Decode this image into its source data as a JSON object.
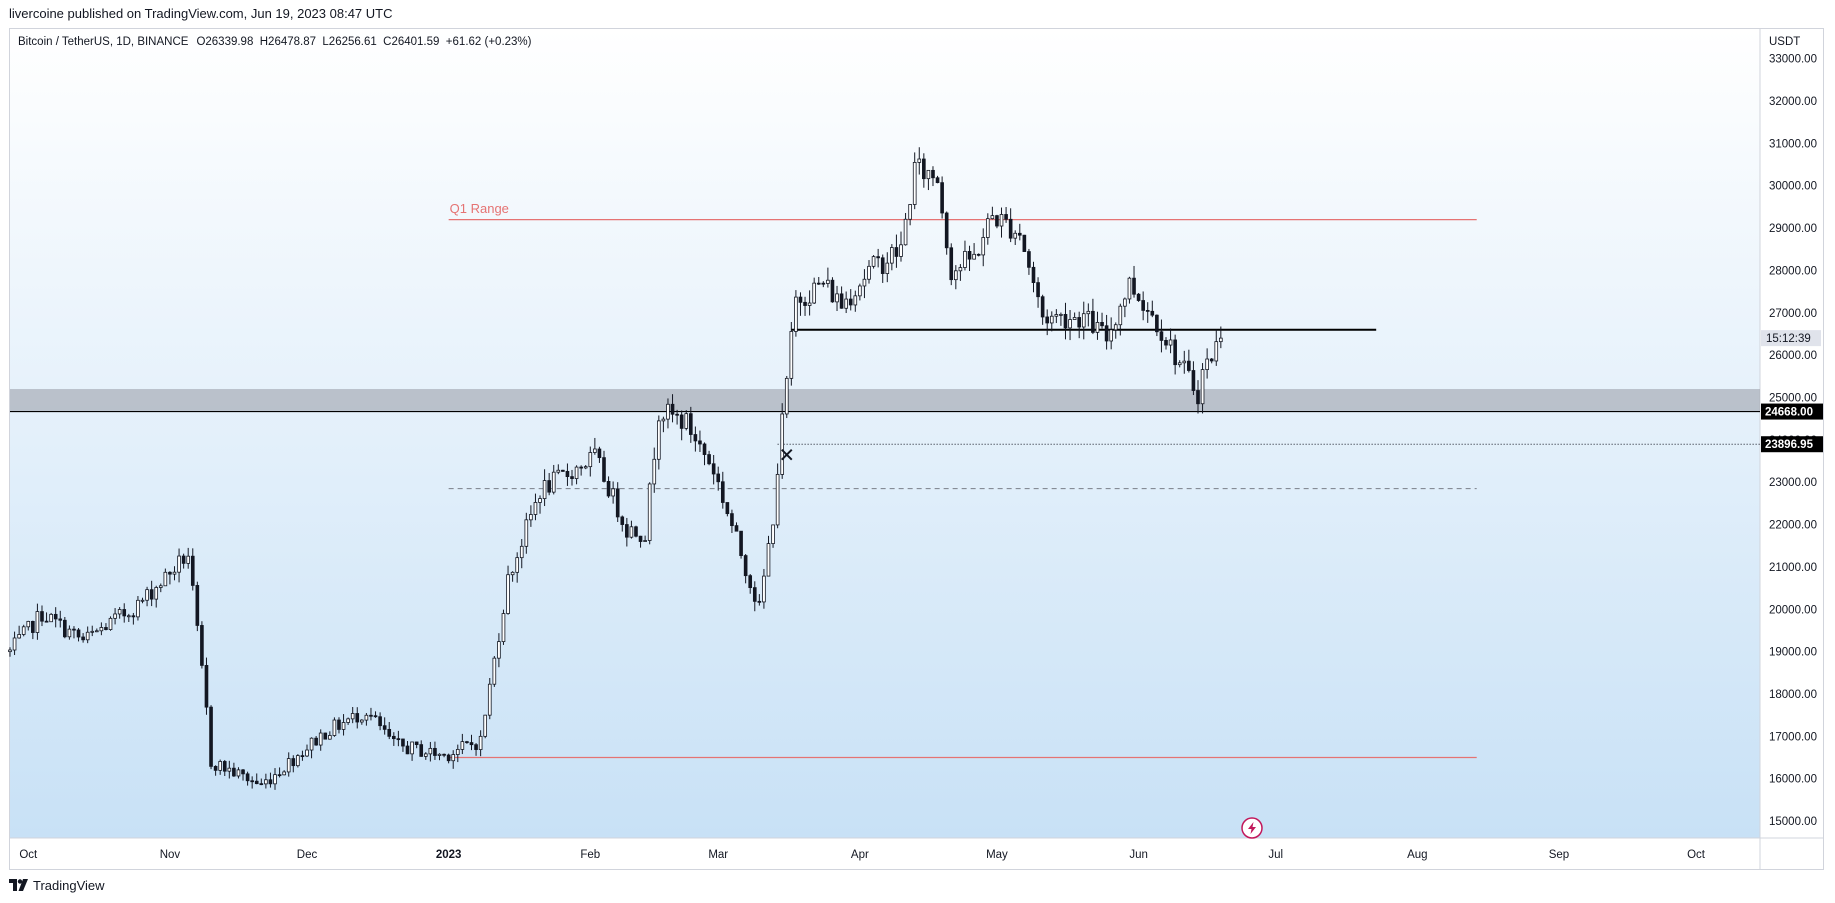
{
  "header": {
    "published_text": "livercoine published on TradingView.com, Jun 19, 2023 08:47 UTC"
  },
  "footer": {
    "brand": "TradingView",
    "logo_icon": "tradingview-logo-icon"
  },
  "colors": {
    "up": "#ffffff",
    "down": "#131722",
    "range_line": "#e57373",
    "support_band": "#9ea3ad",
    "background_top": "#ffffff",
    "background_bottom": "#c8e1f6"
  },
  "chart_data": {
    "type": "candlestick",
    "symbol_line": {
      "symbol": "Bitcoin / TetherUS, 1D, BINANCE",
      "ohlc": "O26339.98  H26478.87  L26256.61  C26401.59  +61.62 (+0.23%)"
    },
    "y_axis": {
      "currency": "USDT",
      "range": [
        14600,
        33700
      ],
      "ticks": [
        15000,
        16000,
        17000,
        18000,
        19000,
        20000,
        21000,
        22000,
        23000,
        24000,
        25000,
        26000,
        27000,
        28000,
        29000,
        30000,
        31000,
        32000,
        33000
      ],
      "tick_labels": [
        "15000.00",
        "16000.00",
        "17000.00",
        "18000.00",
        "19000.00",
        "20000.00",
        "21000.00",
        "22000.00",
        "23000.00",
        "24000.00",
        "25000.00",
        "26000.00",
        "27000.00",
        "28000.00",
        "29000.00",
        "30000.00",
        "31000.00",
        "32000.00",
        "33000.00"
      ]
    },
    "x_axis": {
      "range": [
        "2022-09-27",
        "2023-10-15"
      ],
      "ticks": [
        {
          "date": "2022-10-01",
          "label": "Oct",
          "bold": false
        },
        {
          "date": "2022-11-01",
          "label": "Nov",
          "bold": false
        },
        {
          "date": "2022-12-01",
          "label": "Dec",
          "bold": false
        },
        {
          "date": "2023-01-01",
          "label": "2023",
          "bold": true
        },
        {
          "date": "2023-02-01",
          "label": "Feb",
          "bold": false
        },
        {
          "date": "2023-03-01",
          "label": "Mar",
          "bold": false
        },
        {
          "date": "2023-04-01",
          "label": "Apr",
          "bold": false
        },
        {
          "date": "2023-05-01",
          "label": "May",
          "bold": false
        },
        {
          "date": "2023-06-01",
          "label": "Jun",
          "bold": false
        },
        {
          "date": "2023-07-01",
          "label": "Jul",
          "bold": false
        },
        {
          "date": "2023-08-01",
          "label": "Aug",
          "bold": false
        },
        {
          "date": "2023-09-01",
          "label": "Sep",
          "bold": false
        },
        {
          "date": "2023-10-01",
          "label": "Oct",
          "bold": false
        }
      ]
    },
    "price_tags": [
      {
        "label": "15:12:39",
        "value": 26401.59,
        "style": "countdown"
      },
      {
        "label": "24668.00",
        "value": 24668.0,
        "style": "level"
      },
      {
        "label": "23896.95",
        "value": 23896.95,
        "style": "level"
      }
    ],
    "annotations": [
      {
        "type": "text",
        "text": "Q1 Range",
        "date": "2023-01-01",
        "value": 29400
      },
      {
        "type": "hline",
        "name": "q1-range-high",
        "from": "2023-01-01",
        "to": "2023-08-14",
        "value": 29200,
        "style": "solid-red"
      },
      {
        "type": "hline",
        "name": "q1-range-low",
        "from": "2023-01-01",
        "to": "2023-08-14",
        "value": 16500,
        "style": "solid-red"
      },
      {
        "type": "hline",
        "name": "q1-range-mid",
        "from": "2023-01-01",
        "to": "2023-08-14",
        "value": 22850,
        "style": "dashed-gray"
      },
      {
        "type": "hline",
        "name": "support-level",
        "from": "2023-03-17",
        "to": "2023-07-23",
        "value": 26600,
        "style": "solid-black"
      },
      {
        "type": "hline",
        "name": "horizontal-ray-23896",
        "from": "2023-03-14",
        "to": "end",
        "value": 23896.95,
        "style": "dotted-black"
      },
      {
        "type": "band",
        "name": "support-zone",
        "low": 24668.0,
        "high": 25200
      },
      {
        "type": "hline",
        "name": "horizontal-line-24668",
        "value": 24668.0,
        "style": "solid-black-full"
      },
      {
        "type": "marker",
        "name": "cross-marker",
        "date": "2023-03-16",
        "value": 23650
      }
    ],
    "anchors": [
      {
        "date": "2022-09-27",
        "value": 19000
      },
      {
        "date": "2022-10-04",
        "value": 19900
      },
      {
        "date": "2022-10-13",
        "value": 19250
      },
      {
        "date": "2022-10-25",
        "value": 20100
      },
      {
        "date": "2022-11-05",
        "value": 21300
      },
      {
        "date": "2022-11-09",
        "value": 17600
      },
      {
        "date": "2022-11-10",
        "value": 16400
      },
      {
        "date": "2022-11-21",
        "value": 15850
      },
      {
        "date": "2022-12-05",
        "value": 17100
      },
      {
        "date": "2022-12-14",
        "value": 17600
      },
      {
        "date": "2022-12-20",
        "value": 16800
      },
      {
        "date": "2022-12-31",
        "value": 16550
      },
      {
        "date": "2023-01-08",
        "value": 16900
      },
      {
        "date": "2023-01-14",
        "value": 20700
      },
      {
        "date": "2023-01-21",
        "value": 22800
      },
      {
        "date": "2023-02-02",
        "value": 23600
      },
      {
        "date": "2023-02-09",
        "value": 21900
      },
      {
        "date": "2023-02-13",
        "value": 21800
      },
      {
        "date": "2023-02-16",
        "value": 24700
      },
      {
        "date": "2023-02-22",
        "value": 24400
      },
      {
        "date": "2023-02-28",
        "value": 23300
      },
      {
        "date": "2023-03-03",
        "value": 22300
      },
      {
        "date": "2023-03-10",
        "value": 20000
      },
      {
        "date": "2023-03-13",
        "value": 22200
      },
      {
        "date": "2023-03-15",
        "value": 24400
      },
      {
        "date": "2023-03-18",
        "value": 27300
      },
      {
        "date": "2023-03-24",
        "value": 27700
      },
      {
        "date": "2023-03-28",
        "value": 27200
      },
      {
        "date": "2023-04-03",
        "value": 28000
      },
      {
        "date": "2023-04-10",
        "value": 28500
      },
      {
        "date": "2023-04-13",
        "value": 30400
      },
      {
        "date": "2023-04-18",
        "value": 30200
      },
      {
        "date": "2023-04-21",
        "value": 28000
      },
      {
        "date": "2023-04-26",
        "value": 28300
      },
      {
        "date": "2023-04-30",
        "value": 29300
      },
      {
        "date": "2023-05-06",
        "value": 28900
      },
      {
        "date": "2023-05-11",
        "value": 26900
      },
      {
        "date": "2023-05-20",
        "value": 26900
      },
      {
        "date": "2023-05-25",
        "value": 26400
      },
      {
        "date": "2023-05-30",
        "value": 27700
      },
      {
        "date": "2023-06-05",
        "value": 26800
      },
      {
        "date": "2023-06-10",
        "value": 25800
      },
      {
        "date": "2023-06-14",
        "value": 25100
      },
      {
        "date": "2023-06-15",
        "value": 25600
      },
      {
        "date": "2023-06-19",
        "value": 26400
      }
    ]
  }
}
